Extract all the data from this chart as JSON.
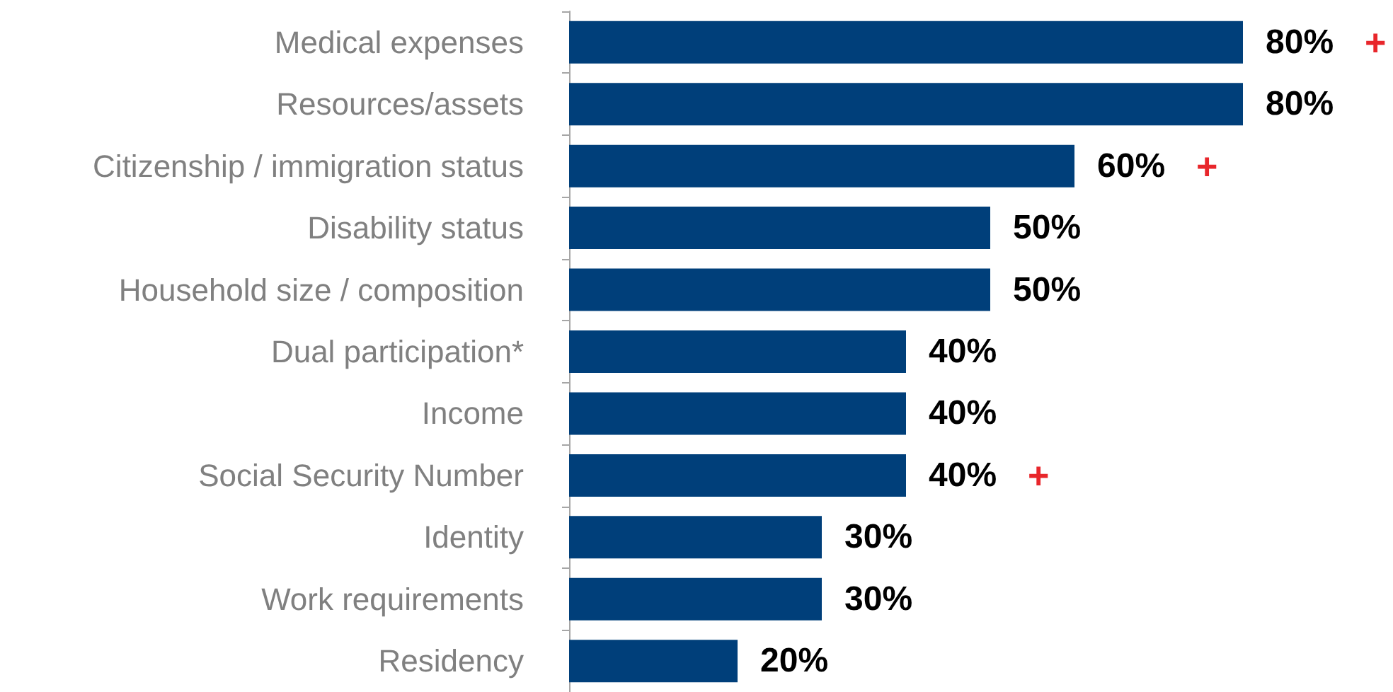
{
  "chart_data": {
    "type": "bar",
    "orientation": "horizontal",
    "categories": [
      "Medical expenses",
      "Resources/assets",
      "Citizenship / immigration status",
      "Disability status",
      "Household size / composition",
      "Dual participation*",
      "Income",
      "Social Security Number",
      "Identity",
      "Work requirements",
      "Residency"
    ],
    "values": [
      80,
      80,
      60,
      50,
      50,
      40,
      40,
      40,
      30,
      30,
      20
    ],
    "color": "#003f7a",
    "value_labels": [
      "80% +",
      "80%",
      "60% +",
      "50%",
      "50%",
      "40%",
      "40%",
      "40% +",
      "30%",
      "30%",
      "20%"
    ]
  }
}
